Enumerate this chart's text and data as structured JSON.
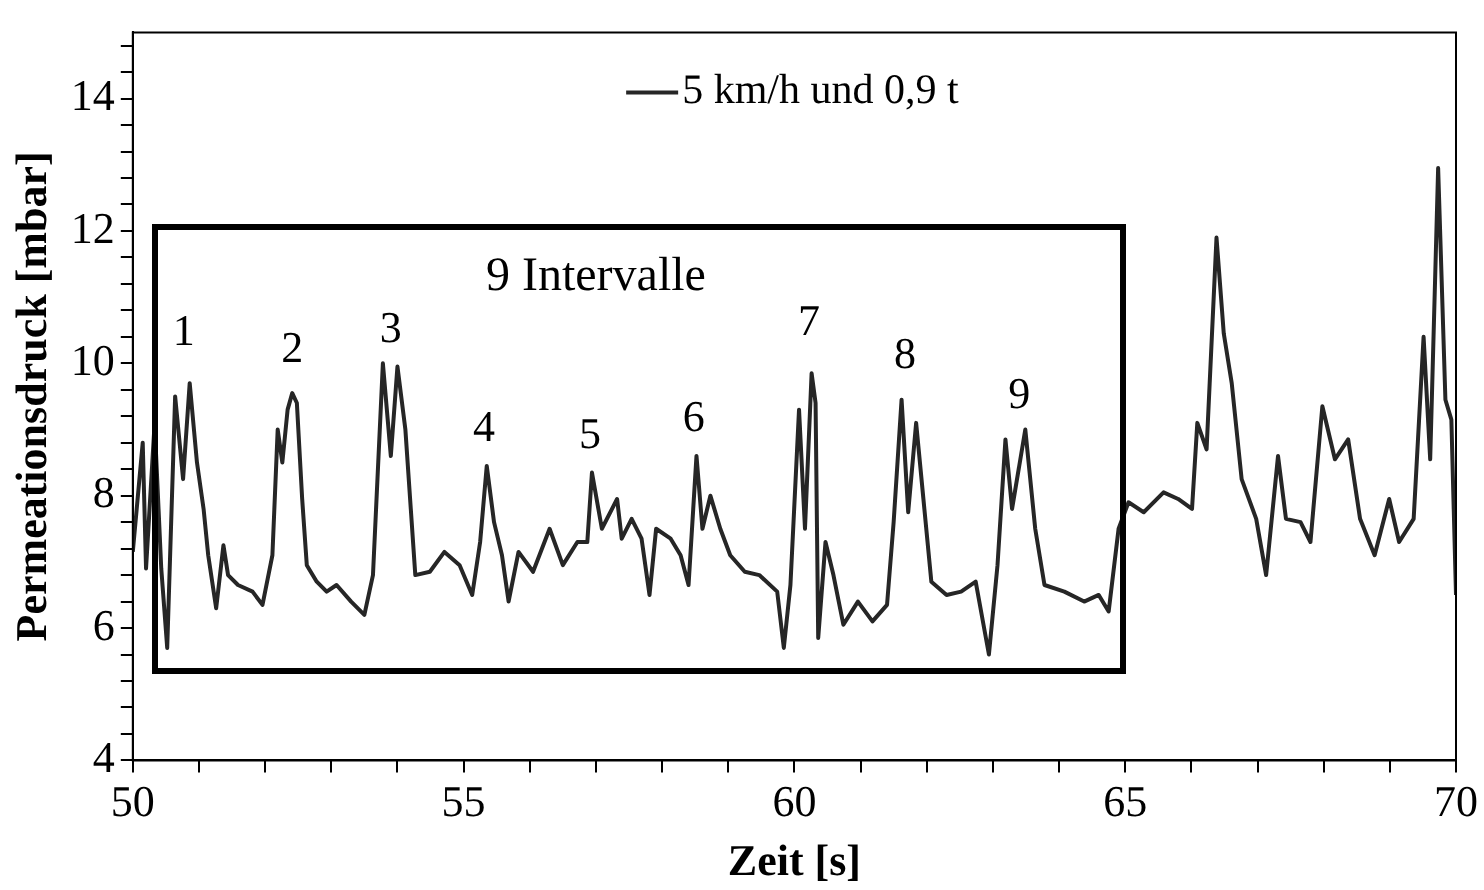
{
  "chart_data": {
    "type": "line",
    "xlabel": "Zeit [s]",
    "ylabel": "Permeationsdruck [mbar]",
    "x": [
      50.0,
      50.15,
      50.2,
      50.33,
      50.43,
      50.52,
      50.64,
      50.76,
      50.86,
      50.97,
      51.07,
      51.14,
      51.26,
      51.37,
      51.44,
      51.59,
      51.81,
      51.96,
      52.11,
      52.19,
      52.26,
      52.34,
      52.41,
      52.48,
      52.56,
      52.63,
      52.78,
      52.93,
      53.08,
      53.3,
      53.5,
      53.63,
      53.78,
      53.9,
      54.0,
      54.12,
      54.27,
      54.49,
      54.71,
      54.94,
      55.13,
      55.25,
      55.35,
      55.46,
      55.58,
      55.68,
      55.83,
      56.05,
      56.3,
      56.5,
      56.72,
      56.87,
      56.94,
      57.09,
      57.32,
      57.39,
      57.54,
      57.69,
      57.81,
      57.91,
      58.13,
      58.28,
      58.4,
      58.52,
      58.61,
      58.73,
      58.88,
      59.03,
      59.25,
      59.47,
      59.74,
      59.84,
      59.94,
      60.07,
      60.16,
      60.26,
      60.32,
      60.36,
      60.47,
      60.59,
      60.74,
      60.96,
      61.18,
      61.4,
      61.5,
      61.62,
      61.72,
      61.84,
      61.95,
      62.07,
      62.3,
      62.52,
      62.74,
      62.94,
      63.07,
      63.19,
      63.29,
      63.49,
      63.64,
      63.78,
      64.08,
      64.38,
      64.6,
      64.75,
      64.9,
      65.05,
      65.28,
      65.58,
      65.8,
      66.01,
      66.09,
      66.23,
      66.38,
      66.49,
      66.61,
      66.76,
      66.98,
      67.13,
      67.31,
      67.43,
      67.65,
      67.8,
      67.98,
      68.17,
      68.37,
      68.55,
      68.77,
      68.99,
      69.14,
      69.36,
      69.51,
      69.61,
      69.73,
      69.84,
      69.93,
      70.0
    ],
    "series": [
      {
        "name": "5 km/h und 0,9 t",
        "color": "#262626",
        "values": [
          7.15,
          8.8,
          6.9,
          9.1,
          6.9,
          5.7,
          9.5,
          8.25,
          9.7,
          8.5,
          7.8,
          7.1,
          6.3,
          7.25,
          6.8,
          6.65,
          6.55,
          6.35,
          7.1,
          9.0,
          8.5,
          9.3,
          9.55,
          9.4,
          7.95,
          6.95,
          6.7,
          6.55,
          6.65,
          6.4,
          6.2,
          6.8,
          10.0,
          8.6,
          9.95,
          9.0,
          6.8,
          6.85,
          7.15,
          6.95,
          6.5,
          7.3,
          8.45,
          7.6,
          7.1,
          6.4,
          7.15,
          6.85,
          7.5,
          6.95,
          7.3,
          7.3,
          8.35,
          7.5,
          7.95,
          7.35,
          7.65,
          7.35,
          6.5,
          7.5,
          7.35,
          7.1,
          6.65,
          8.6,
          7.5,
          8.0,
          7.5,
          7.1,
          6.85,
          6.8,
          6.55,
          5.7,
          6.65,
          9.3,
          7.5,
          9.85,
          9.4,
          5.85,
          7.3,
          6.8,
          6.05,
          6.4,
          6.1,
          6.35,
          7.6,
          9.45,
          7.75,
          9.1,
          7.95,
          6.7,
          6.5,
          6.55,
          6.7,
          5.6,
          6.95,
          8.85,
          7.8,
          9.0,
          7.5,
          6.65,
          6.55,
          6.4,
          6.5,
          6.25,
          7.5,
          7.9,
          7.75,
          8.05,
          7.95,
          7.8,
          9.1,
          8.7,
          11.9,
          10.45,
          9.7,
          8.25,
          7.65,
          6.8,
          8.6,
          7.65,
          7.6,
          7.3,
          9.35,
          8.55,
          8.85,
          7.65,
          7.1,
          7.95,
          7.3,
          7.65,
          10.4,
          8.55,
          12.95,
          9.45,
          9.15,
          6.5
        ]
      }
    ],
    "xlim": [
      50,
      70
    ],
    "xticks": [
      50,
      {
        "value": 51,
        "label": null
      },
      {
        "value": 52,
        "label": null
      },
      {
        "value": 53,
        "label": null
      },
      {
        "value": 54,
        "label": null
      },
      55,
      {
        "value": 56,
        "label": null
      },
      {
        "value": 57,
        "label": null
      },
      {
        "value": 58,
        "label": null
      },
      {
        "value": 59,
        "label": null
      },
      60,
      {
        "value": 61,
        "label": null
      },
      {
        "value": 62,
        "label": null
      },
      {
        "value": 63,
        "label": null
      },
      {
        "value": 64,
        "label": null
      },
      65,
      {
        "value": 66,
        "label": null
      },
      {
        "value": 67,
        "label": null
      },
      {
        "value": 68,
        "label": null
      },
      {
        "value": 69,
        "label": null
      },
      70
    ],
    "ylim": [
      4,
      15
    ],
    "yticks": [
      4,
      {
        "value": 4.4,
        "label": null
      },
      {
        "value": 4.8,
        "label": null
      },
      {
        "value": 5.2,
        "label": null
      },
      {
        "value": 5.6,
        "label": null
      },
      6,
      {
        "value": 6.4,
        "label": null
      },
      {
        "value": 6.8,
        "label": null
      },
      {
        "value": 7.2,
        "label": null
      },
      {
        "value": 7.6,
        "label": null
      },
      8,
      {
        "value": 8.4,
        "label": null
      },
      {
        "value": 8.8,
        "label": null
      },
      {
        "value": 9.2,
        "label": null
      },
      {
        "value": 9.6,
        "label": null
      },
      10,
      {
        "value": 10.4,
        "label": null
      },
      {
        "value": 10.8,
        "label": null
      },
      {
        "value": 11.2,
        "label": null
      },
      {
        "value": 11.6,
        "label": null
      },
      12,
      {
        "value": 12.4,
        "label": null
      },
      {
        "value": 12.8,
        "label": null
      },
      {
        "value": 13.2,
        "label": null
      },
      {
        "value": 13.6,
        "label": null
      },
      14,
      {
        "value": 14.4,
        "label": null
      },
      {
        "value": 14.8,
        "label": null
      }
    ],
    "legend": "top",
    "grid": false,
    "marker": "none",
    "line_style": "solid",
    "annotations": [
      "9 Intervalle",
      "1",
      "2",
      "3",
      "4",
      "5",
      "6",
      "7",
      "8",
      "9"
    ]
  }
}
